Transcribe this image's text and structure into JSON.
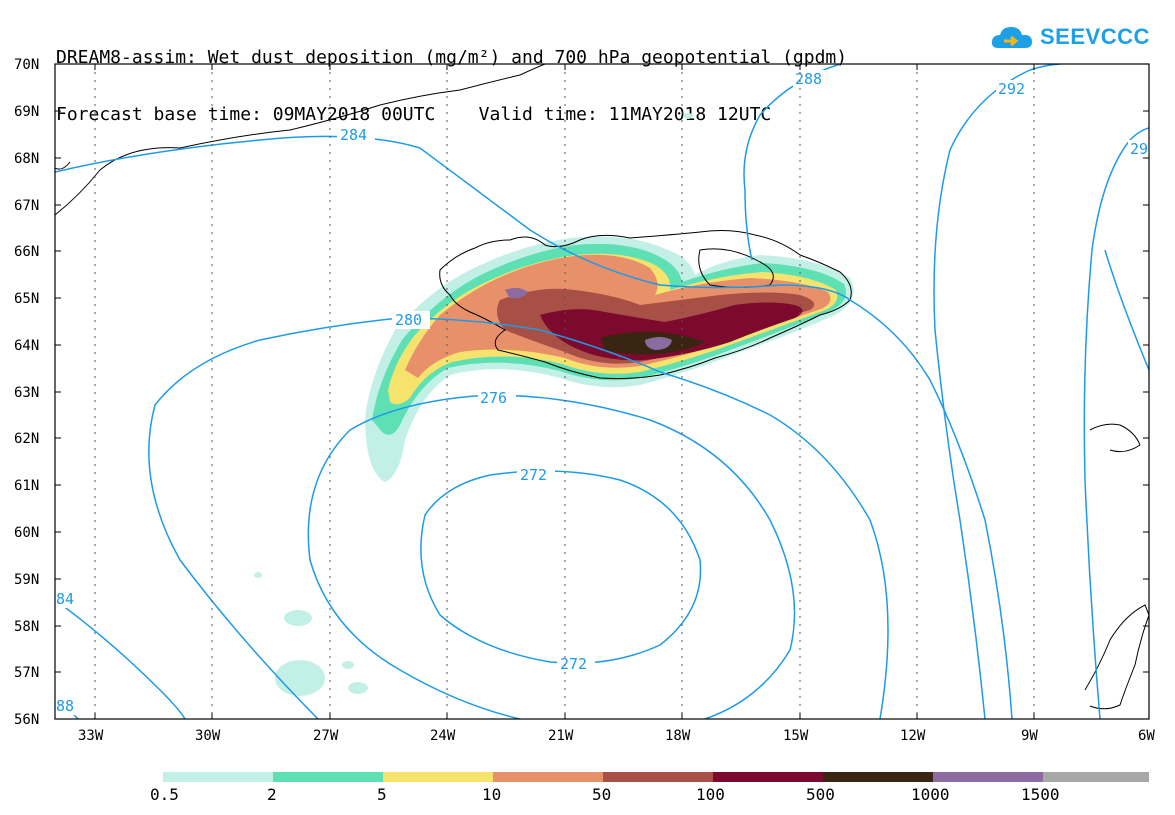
{
  "title": {
    "line1": "DREAM8-assim: Wet dust deposition (mg/m²) and 700 hPa geopotential (gpdm)",
    "line2": "Forecast base time: 09MAY2018 00UTC    Valid time: 11MAY2018 12UTC"
  },
  "logo": {
    "text": "SEEVCCC",
    "icon": "cloud-arrow-icon"
  },
  "map": {
    "lat_labels": [
      "70N",
      "69N",
      "68N",
      "67N",
      "66N",
      "65N",
      "64N",
      "63N",
      "62N",
      "61N",
      "60N",
      "59N",
      "58N",
      "57N",
      "56N"
    ],
    "lon_labels": [
      "33W",
      "30W",
      "27W",
      "24W",
      "21W",
      "18W",
      "15W",
      "12W",
      "9W",
      "6W"
    ],
    "contour_labels": [
      "284",
      "288",
      "292",
      "29",
      "280",
      "276",
      "272",
      "272",
      "84",
      "88"
    ],
    "contour_color": "#1e9be6",
    "grid": "dotted"
  },
  "legend": {
    "labels": [
      "0.5",
      "2",
      "5",
      "10",
      "50",
      "100",
      "500",
      "1000",
      "1500"
    ],
    "colors": [
      "#c2f0e6",
      "#5ee0b4",
      "#f5e36e",
      "#e8906a",
      "#a84f46",
      "#7d0a2e",
      "#3a2412",
      "#8c6ca0",
      "#a8a8a8"
    ]
  }
}
